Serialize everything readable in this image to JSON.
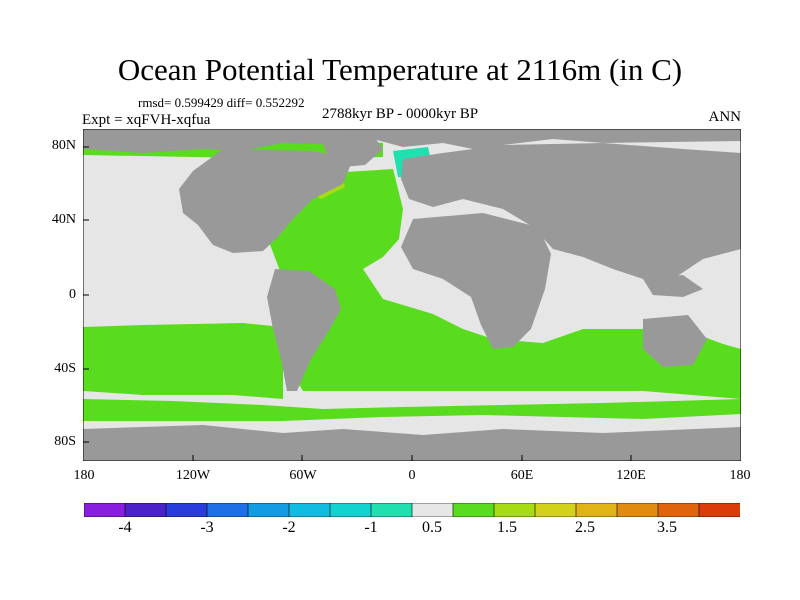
{
  "figure": {
    "title": "Ocean Potential Temperature at 2116m (in C)",
    "stats": "rmsd= 0.599429 diff= 0.552292",
    "experiment": "Expt = xqFVH-xqfua",
    "period": "2788kyr BP - 0000kyr BP",
    "season": "ANN"
  },
  "axes": {
    "y_ticks": [
      "80N",
      "40N",
      "0",
      "40S",
      "80S"
    ],
    "x_ticks": [
      "180",
      "120W",
      "60W",
      "0",
      "60E",
      "120E",
      "180"
    ]
  },
  "colorbar": {
    "colors": [
      "#8a1ee0",
      "#4b22c8",
      "#2a3ddc",
      "#1e6fe6",
      "#139be3",
      "#10bde0",
      "#12d3d0",
      "#20e0b0",
      "#e6e6e6",
      "#5adc1e",
      "#a6dc14",
      "#d2d21a",
      "#e0b414",
      "#e08c10",
      "#e0640c",
      "#dc3c0a"
    ],
    "labels": [
      "-4",
      "-3",
      "-2",
      "-1",
      "0.5",
      "1.5",
      "2.5",
      "3.5"
    ]
  },
  "map_colors": {
    "land": "#999999",
    "ocean_base": "#5adc1e",
    "near_zero": "#e6e6e6",
    "north_atlantic_warm": "#a6dc14",
    "greenland_sea": "#20e0b0"
  }
}
